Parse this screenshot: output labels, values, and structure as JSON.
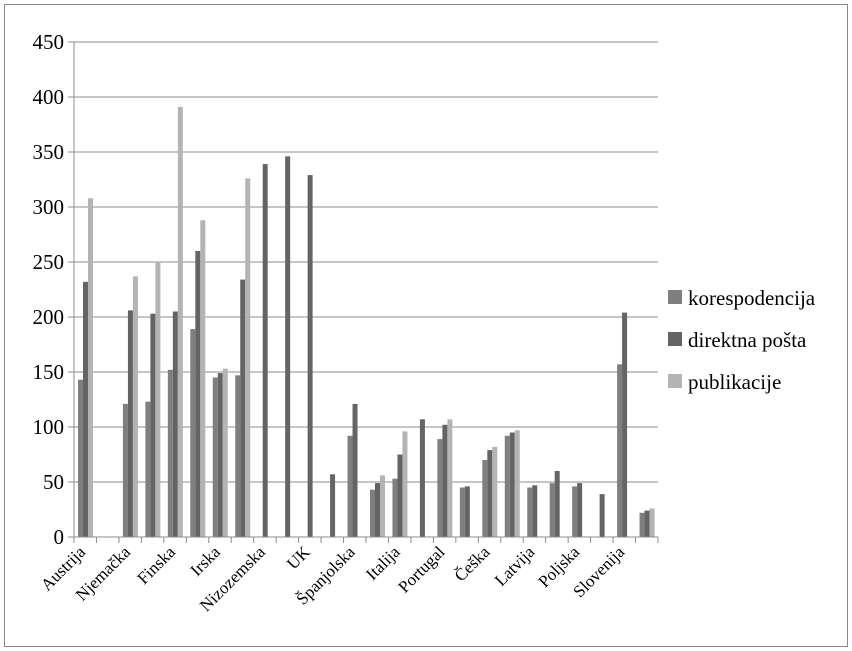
{
  "chart_data": {
    "type": "bar",
    "title": "",
    "xlabel": "",
    "ylabel": "",
    "ylim": [
      0,
      450
    ],
    "yticks": [
      0,
      50,
      100,
      150,
      200,
      250,
      300,
      350,
      400,
      450
    ],
    "grid": true,
    "legend_position": "right",
    "categories": [
      "Austrija",
      "",
      "Njemačka",
      "",
      "Finska",
      "",
      "Irska",
      "",
      "Nizozemska",
      "",
      "UK",
      "",
      "Španjolska",
      "",
      "Italija",
      "",
      "Portugal",
      "",
      "Češka",
      "",
      "Latvija",
      "",
      "Poljska",
      "",
      "Slovenija",
      ""
    ],
    "series": [
      {
        "name": "korespodencija",
        "color": "#7f7f7f",
        "values": [
          143,
          null,
          121,
          123,
          152,
          189,
          145,
          147,
          null,
          null,
          null,
          null,
          92,
          43,
          53,
          null,
          89,
          45,
          70,
          92,
          45,
          49,
          46,
          null,
          157,
          22
        ]
      },
      {
        "name": "direktna pošta",
        "color": "#646464",
        "values": [
          232,
          null,
          206,
          203,
          205,
          260,
          149,
          234,
          339,
          346,
          329,
          57,
          121,
          49,
          75,
          107,
          102,
          46,
          79,
          95,
          47,
          60,
          49,
          39,
          204,
          24
        ]
      },
      {
        "name": "publikacije",
        "color": "#b4b4b4",
        "values": [
          308,
          null,
          237,
          250,
          391,
          288,
          153,
          326,
          null,
          null,
          null,
          null,
          null,
          56,
          96,
          null,
          107,
          null,
          82,
          97,
          null,
          null,
          null,
          null,
          null,
          26
        ]
      }
    ]
  }
}
